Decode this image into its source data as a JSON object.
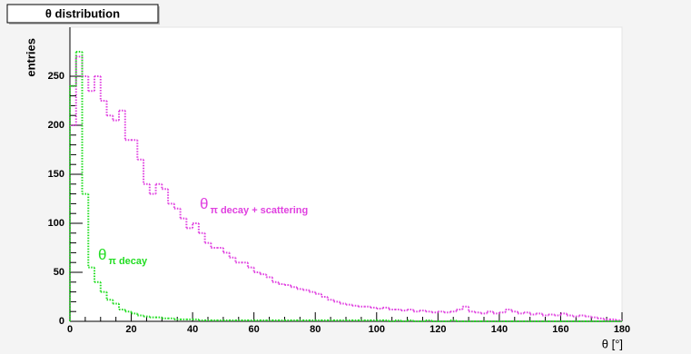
{
  "chart_data": {
    "type": "histogram",
    "title": "θ distribution",
    "xlabel": "θ [°]",
    "ylabel": "entries",
    "bins": [
      0,
      2,
      4,
      6,
      8,
      10,
      12,
      14,
      16,
      18,
      20,
      22,
      24,
      26,
      28,
      30,
      32,
      34,
      36,
      38,
      40,
      42,
      44,
      46,
      48,
      50,
      52,
      54,
      56,
      58,
      60,
      62,
      64,
      66,
      68,
      70,
      72,
      74,
      76,
      78,
      80,
      82,
      84,
      86,
      88,
      90,
      92,
      94,
      96,
      98,
      100,
      102,
      104,
      106,
      108,
      110,
      112,
      114,
      116,
      118,
      120,
      122,
      124,
      126,
      128,
      130,
      132,
      134,
      136,
      138,
      140,
      142,
      144,
      146,
      148,
      150,
      152,
      154,
      156,
      158,
      160,
      162,
      164,
      166,
      168,
      170,
      172,
      174,
      176,
      178,
      180
    ],
    "xlim": [
      0,
      180
    ],
    "ylim": [
      0,
      300
    ],
    "xticks": [
      0,
      20,
      40,
      60,
      80,
      100,
      120,
      140,
      160,
      180
    ],
    "yticks": [
      0,
      50,
      100,
      150,
      200,
      250
    ],
    "series": [
      {
        "label_main": "θ",
        "label_sub": "π decay + scattering",
        "color": "#e040e0",
        "values": [
          200,
          270,
          250,
          235,
          250,
          225,
          210,
          205,
          215,
          185,
          185,
          165,
          140,
          130,
          140,
          135,
          120,
          115,
          105,
          95,
          100,
          90,
          80,
          75,
          75,
          70,
          65,
          60,
          60,
          55,
          50,
          48,
          45,
          40,
          38,
          37,
          35,
          33,
          32,
          30,
          28,
          25,
          22,
          20,
          18,
          17,
          16,
          15,
          15,
          14,
          13,
          14,
          12,
          12,
          11,
          12,
          10,
          11,
          10,
          9,
          10,
          9,
          10,
          12,
          15,
          10,
          9,
          8,
          10,
          8,
          9,
          12,
          10,
          8,
          9,
          7,
          8,
          6,
          7,
          6,
          8,
          6,
          5,
          6,
          5,
          4,
          3,
          2,
          2,
          1
        ]
      },
      {
        "label_main": "θ",
        "label_sub": "π decay",
        "color": "#22dd22",
        "values": [
          240,
          275,
          130,
          55,
          40,
          30,
          22,
          18,
          12,
          10,
          8,
          6,
          5,
          4,
          4,
          3,
          3,
          2,
          2,
          2,
          2,
          1,
          1,
          1,
          1,
          1,
          1,
          1,
          1,
          1,
          1,
          1,
          1,
          1,
          1,
          1,
          1,
          1,
          1,
          1,
          1,
          1,
          1,
          1,
          1,
          1,
          1,
          1,
          1,
          1,
          1,
          1,
          0,
          1,
          0,
          1,
          0,
          0,
          1,
          0,
          0,
          0,
          1,
          0,
          0,
          0,
          0,
          0,
          0,
          0,
          0,
          0,
          0,
          0,
          0,
          0,
          0,
          0,
          0,
          0,
          0,
          0,
          0,
          0,
          0,
          0,
          0,
          0,
          0,
          0
        ]
      }
    ]
  }
}
